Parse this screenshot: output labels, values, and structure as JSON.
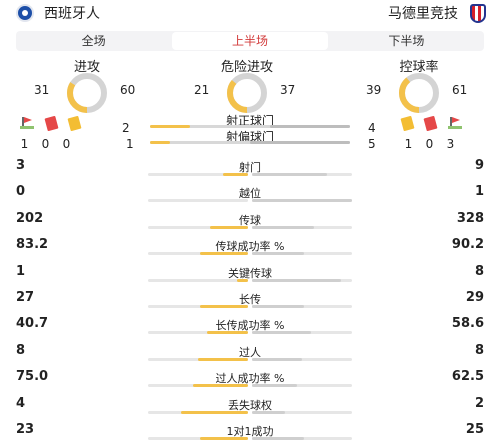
{
  "header": {
    "home_team": "西班牙人",
    "away_team": "马德里竞技",
    "home_badge_icon": "espanyol-badge-icon",
    "away_badge_icon": "atletico-badge-icon"
  },
  "tabs": [
    {
      "label": "全场",
      "active": false
    },
    {
      "label": "上半场",
      "active": true
    },
    {
      "label": "下半场",
      "active": false
    }
  ],
  "rings": [
    {
      "title": "进攻",
      "home": "31",
      "away": "60",
      "home_value": 31,
      "away_value": 60
    },
    {
      "title": "危险进攻",
      "home": "21",
      "away": "37",
      "home_value": 21,
      "away_value": 37
    },
    {
      "title": "控球率",
      "home": "39",
      "away": "61",
      "home_value": 39,
      "away_value": 61
    }
  ],
  "cards": {
    "home": {
      "corners": "1",
      "red": "0",
      "yellow": "0"
    },
    "away": {
      "yellow": "1",
      "red": "0",
      "corners": "3"
    }
  },
  "shots": {
    "on_target_label": "射正球门",
    "off_target_label": "射偏球门",
    "home_on_target": "2",
    "away_on_target": "4",
    "home_off_target": "1",
    "away_off_target": "5",
    "home_on_value": 2,
    "away_on_value": 4,
    "home_off_value": 1,
    "away_off_value": 5
  },
  "colors": {
    "home": "#f3c14a",
    "away": "#cfcfcf",
    "active_tab": "#d23a3a"
  },
  "stats": [
    {
      "label": "射门",
      "home": "3",
      "away": "9",
      "home_value": 3,
      "away_value": 9
    },
    {
      "label": "越位",
      "home": "0",
      "away": "1",
      "home_value": 0,
      "away_value": 1
    },
    {
      "label": "传球",
      "home": "202",
      "away": "328",
      "home_value": 202,
      "away_value": 328
    },
    {
      "label": "传球成功率 %",
      "home": "83.2",
      "away": "90.2",
      "home_value": 83.2,
      "away_value": 90.2
    },
    {
      "label": "关键传球",
      "home": "1",
      "away": "8",
      "home_value": 1,
      "away_value": 8
    },
    {
      "label": "长传",
      "home": "27",
      "away": "29",
      "home_value": 27,
      "away_value": 29
    },
    {
      "label": "长传成功率 %",
      "home": "40.7",
      "away": "58.6",
      "home_value": 40.7,
      "away_value": 58.6
    },
    {
      "label": "过人",
      "home": "8",
      "away": "8",
      "home_value": 8,
      "away_value": 8
    },
    {
      "label": "过人成功率 %",
      "home": "75.0",
      "away": "62.5",
      "home_value": 75.0,
      "away_value": 62.5
    },
    {
      "label": "丢失球权",
      "home": "4",
      "away": "2",
      "home_value": 4,
      "away_value": 2
    },
    {
      "label": "1对1成功",
      "home": "23",
      "away": "25",
      "home_value": 23,
      "away_value": 25
    }
  ]
}
